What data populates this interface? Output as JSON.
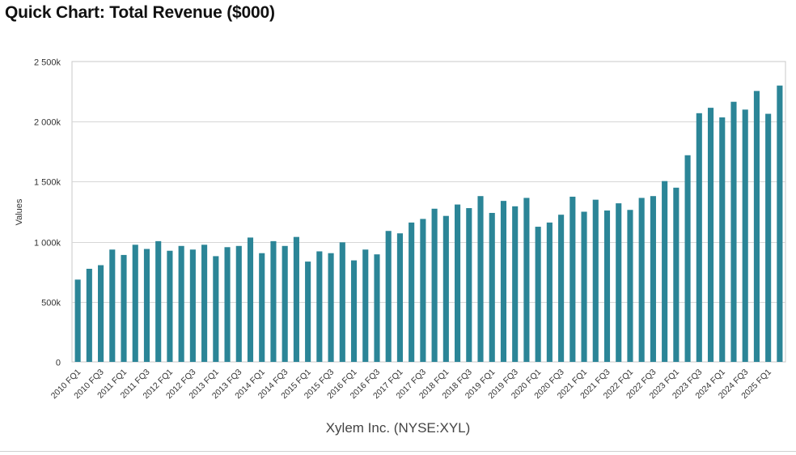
{
  "title": "Quick Chart: Total Revenue ($000)",
  "chart_data": {
    "type": "bar",
    "title": "Quick Chart: Total Revenue ($000)",
    "xlabel": "Xylem Inc. (NYSE:XYL)",
    "ylabel": "Values",
    "ylim": [
      0,
      2500000
    ],
    "yticks": [
      0,
      500000,
      1000000,
      1500000,
      2000000,
      2500000
    ],
    "ytick_labels": [
      "0",
      "500k",
      "1 000k",
      "1 500k",
      "2 000k",
      "2 500k"
    ],
    "grid": true,
    "bar_color": "#2b8597",
    "categories": [
      "2010 FQ1",
      "2010 FQ2",
      "2010 FQ3",
      "2010 FQ4",
      "2011 FQ1",
      "2011 FQ2",
      "2011 FQ3",
      "2011 FQ4",
      "2012 FQ1",
      "2012 FQ2",
      "2012 FQ3",
      "2012 FQ4",
      "2013 FQ1",
      "2013 FQ2",
      "2013 FQ3",
      "2013 FQ4",
      "2014 FQ1",
      "2014 FQ2",
      "2014 FQ3",
      "2014 FQ4",
      "2015 FQ1",
      "2015 FQ2",
      "2015 FQ3",
      "2015 FQ4",
      "2016 FQ1",
      "2016 FQ2",
      "2016 FQ3",
      "2016 FQ4",
      "2017 FQ1",
      "2017 FQ2",
      "2017 FQ3",
      "2017 FQ4",
      "2018 FQ1",
      "2018 FQ2",
      "2018 FQ3",
      "2018 FQ4",
      "2019 FQ1",
      "2019 FQ2",
      "2019 FQ3",
      "2019 FQ4",
      "2020 FQ1",
      "2020 FQ2",
      "2020 FQ3",
      "2020 FQ4",
      "2021 FQ1",
      "2021 FQ2",
      "2021 FQ3",
      "2021 FQ4",
      "2022 FQ1",
      "2022 FQ2",
      "2022 FQ3",
      "2022 FQ4",
      "2023 FQ1",
      "2023 FQ2",
      "2023 FQ3",
      "2023 FQ4",
      "2024 FQ1",
      "2024 FQ2",
      "2024 FQ3",
      "2024 FQ4",
      "2025 FQ1",
      "2025 FQ2"
    ],
    "shown_tick_labels": [
      "2010 FQ1",
      "2010 FQ3",
      "2011 FQ1",
      "2011 FQ3",
      "2012 FQ1",
      "2012 FQ3",
      "2013 FQ1",
      "2013 FQ3",
      "2014 FQ1",
      "2014 FQ3",
      "2015 FQ1",
      "2015 FQ3",
      "2016 FQ1",
      "2016 FQ3",
      "2017 FQ1",
      "2017 FQ3",
      "2018 FQ1",
      "2018 FQ3",
      "2019 FQ1",
      "2019 FQ3",
      "2020 FQ1",
      "2020 FQ3",
      "2021 FQ1",
      "2021 FQ3",
      "2022 FQ1",
      "2022 FQ3",
      "2023 FQ1",
      "2023 FQ3",
      "2024 FQ1",
      "2024 FQ3",
      "2025 FQ1"
    ],
    "series": [
      {
        "name": "Total Revenue",
        "values": [
          685000,
          775000,
          805000,
          935000,
          890000,
          975000,
          940000,
          1005000,
          925000,
          965000,
          935000,
          975000,
          880000,
          955000,
          965000,
          1035000,
          905000,
          1005000,
          965000,
          1040000,
          835000,
          920000,
          905000,
          995000,
          845000,
          935000,
          895000,
          1090000,
          1070000,
          1160000,
          1190000,
          1275000,
          1215000,
          1310000,
          1280000,
          1380000,
          1240000,
          1340000,
          1295000,
          1365000,
          1125000,
          1160000,
          1225000,
          1375000,
          1250000,
          1350000,
          1260000,
          1320000,
          1265000,
          1365000,
          1380000,
          1505000,
          1450000,
          1720000,
          2070000,
          2115000,
          2035000,
          2165000,
          2100000,
          2255000,
          2065000,
          2300000
        ]
      }
    ]
  }
}
